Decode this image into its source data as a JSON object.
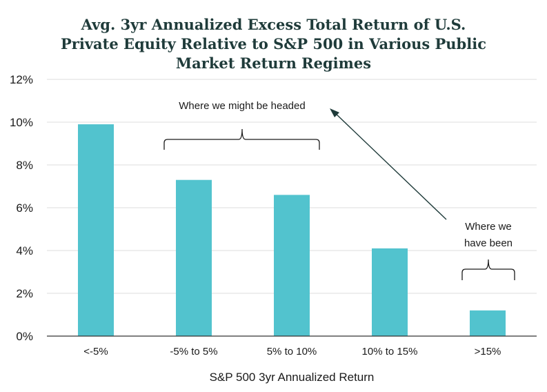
{
  "chart_data": {
    "type": "bar",
    "title_lines": [
      "Avg. 3yr Annualized Excess Total Return of U.S.",
      "Private Equity Relative to S&P 500 in Various Public",
      "Market Return Regimes"
    ],
    "xlabel": "S&P 500 3yr Annualized Return",
    "ylabel": "",
    "categories": [
      "<-5%",
      "-5% to 5%",
      "5% to 10%",
      "10% to 15%",
      ">15%"
    ],
    "values": [
      9.9,
      7.3,
      6.6,
      4.1,
      1.2
    ],
    "ylim": [
      0,
      12
    ],
    "yticks": [
      "0%",
      "2%",
      "4%",
      "6%",
      "8%",
      "10%",
      "12%"
    ],
    "grid": true,
    "bar_color": "#52c3ce",
    "annotations": {
      "headed": "Where we might be headed",
      "been_line1": "Where we",
      "been_line2": "have been"
    }
  }
}
